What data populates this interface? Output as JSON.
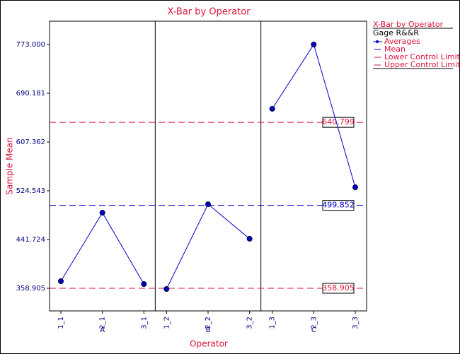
{
  "chart_data": {
    "type": "line",
    "title": "X-Bar by Operator",
    "x_label": "Operator",
    "y_label": "Sample Mean",
    "groups": [
      {
        "name": "A",
        "categories": [
          "1_1",
          "2_1",
          "3_1"
        ]
      },
      {
        "name": "B",
        "categories": [
          "1_2",
          "2_2",
          "3_2"
        ]
      },
      {
        "name": "C",
        "categories": [
          "1_3",
          "2_3",
          "3_3"
        ]
      }
    ],
    "series": [
      {
        "name": "Averages",
        "color": "#0000cc",
        "values": [
          370.9,
          487.3,
          366.1,
          357.7,
          501.7,
          443.0,
          663.8,
          773.0,
          530.5
        ]
      }
    ],
    "reference_lines": [
      {
        "name": "Mean",
        "value": 499.852,
        "color": "#0000cc"
      },
      {
        "name": "Lower Control Limit",
        "value": 358.905,
        "color": "#dc143c"
      },
      {
        "name": "Upper Control Limit",
        "value": 640.799,
        "color": "#dc143c"
      }
    ],
    "ylim": [
      320.5,
      812.6
    ],
    "yticks": [
      358.905,
      441.724,
      524.543,
      607.362,
      690.181,
      {
        "value": 773,
        "label": "773.000"
      }
    ],
    "legend_title": "X-Bar by Operator",
    "legend_subtitle": "Gage R&&R"
  }
}
